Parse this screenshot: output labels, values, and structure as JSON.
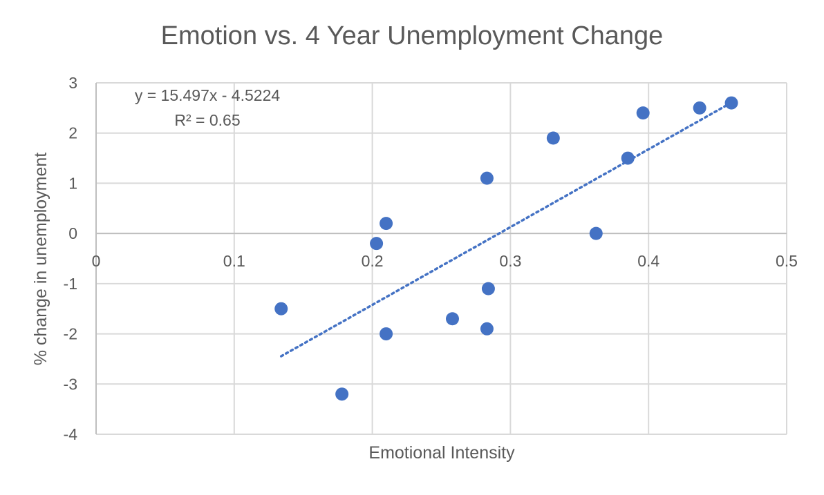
{
  "chart_data": {
    "type": "scatter",
    "title": "Emotion vs. 4 Year Unemployment Change",
    "xlabel": "Emotional Intensity",
    "ylabel": "% change in unemployment",
    "xlim": [
      0,
      0.5
    ],
    "ylim": [
      -4,
      3
    ],
    "xticks": [
      0,
      0.1,
      0.2,
      0.3,
      0.4,
      0.5
    ],
    "xtick_labels": [
      "0",
      "0.1",
      "0.2",
      "0.3",
      "0.4",
      "0.5"
    ],
    "yticks": [
      -4,
      -3,
      -2,
      -1,
      0,
      1,
      2,
      3
    ],
    "ytick_labels": [
      "-4",
      "-3",
      "-2",
      "-1",
      "0",
      "1",
      "2",
      "3"
    ],
    "grid": true,
    "series": [
      {
        "points": [
          {
            "x": 0.134,
            "y": -1.5
          },
          {
            "x": 0.178,
            "y": -3.2
          },
          {
            "x": 0.203,
            "y": -0.2
          },
          {
            "x": 0.21,
            "y": 0.2
          },
          {
            "x": 0.21,
            "y": -2.0
          },
          {
            "x": 0.258,
            "y": -1.7
          },
          {
            "x": 0.283,
            "y": 1.1
          },
          {
            "x": 0.283,
            "y": -1.9
          },
          {
            "x": 0.284,
            "y": -1.1
          },
          {
            "x": 0.331,
            "y": 1.9
          },
          {
            "x": 0.362,
            "y": 0.0
          },
          {
            "x": 0.385,
            "y": 1.5
          },
          {
            "x": 0.396,
            "y": 2.4
          },
          {
            "x": 0.437,
            "y": 2.5
          },
          {
            "x": 0.46,
            "y": 2.6
          }
        ]
      }
    ],
    "trendline": {
      "type": "linear",
      "slope": 15.497,
      "intercept": -4.5224,
      "x_range": [
        0.134,
        0.46
      ],
      "equation_label": "y = 15.497x - 4.5224",
      "r2_label": "R² = 0.65"
    },
    "colors": {
      "marker": "#4472C4",
      "trendline": "#4472C4",
      "grid": "#D9D9D9",
      "text": "#595959"
    }
  }
}
